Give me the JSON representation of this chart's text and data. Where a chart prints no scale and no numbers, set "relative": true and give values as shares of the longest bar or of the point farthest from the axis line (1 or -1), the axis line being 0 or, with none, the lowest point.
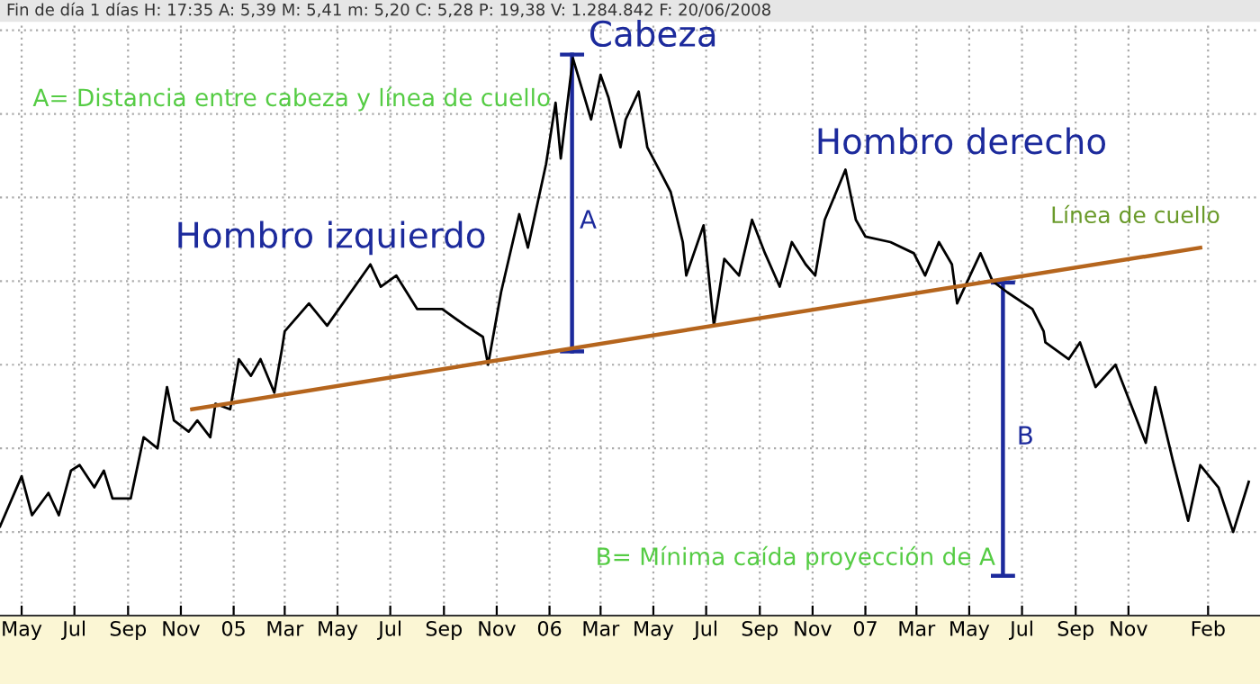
{
  "chart_data": {
    "type": "line",
    "relative": true,
    "title": "Fin de día 1 días H: 17:35 A: 5,39 M: 5,41 m: 5,20 C: 5,28 P: 19,38 V: 1.284.842 F: 20/06/2008",
    "xlim": [
      "2004-04-06",
      "2008-04-01"
    ],
    "xticks": [
      {
        "value": "2004-05-01",
        "label": "May"
      },
      {
        "value": "2004-07-01",
        "label": "Jul"
      },
      {
        "value": "2004-09-01",
        "label": "Sep"
      },
      {
        "value": "2004-11-01",
        "label": "Nov"
      },
      {
        "value": "2005-01-01",
        "label": "05"
      },
      {
        "value": "2005-03-01",
        "label": "Mar"
      },
      {
        "value": "2005-05-01",
        "label": "May"
      },
      {
        "value": "2005-07-01",
        "label": "Jul"
      },
      {
        "value": "2005-09-01",
        "label": "Sep"
      },
      {
        "value": "2005-11-01",
        "label": "Nov"
      },
      {
        "value": "2006-01-01",
        "label": "06"
      },
      {
        "value": "2006-03-01",
        "label": "Mar"
      },
      {
        "value": "2006-05-01",
        "label": "May"
      },
      {
        "value": "2006-07-01",
        "label": "Jul"
      },
      {
        "value": "2006-09-01",
        "label": "Sep"
      },
      {
        "value": "2006-11-01",
        "label": "Nov"
      },
      {
        "value": "2007-01-01",
        "label": "07"
      },
      {
        "value": "2007-03-01",
        "label": "Mar"
      },
      {
        "value": "2007-05-01",
        "label": "May"
      },
      {
        "value": "2007-07-01",
        "label": "Jul"
      },
      {
        "value": "2007-09-01",
        "label": "Sep"
      },
      {
        "value": "2007-11-01",
        "label": "Nov"
      },
      {
        "value": "2008-02-01",
        "label": "Feb"
      }
    ],
    "grid": true,
    "tick_labels": "x",
    "series": [
      {
        "color": "#000000",
        "x": [
          "2004-04-06",
          "2004-05-01",
          "2004-05-13",
          "2004-06-01",
          "2004-06-13",
          "2004-06-27",
          "2004-07-07",
          "2004-07-24",
          "2004-08-04",
          "2004-08-14",
          "2004-09-04",
          "2004-09-19",
          "2004-10-05",
          "2004-10-16",
          "2004-10-24",
          "2004-11-10",
          "2004-11-20",
          "2004-12-05",
          "2004-12-11",
          "2004-12-28",
          "2005-01-07",
          "2005-01-21",
          "2005-02-01",
          "2005-02-17",
          "2005-02-26",
          "2005-03-01",
          "2005-03-29",
          "2005-04-19",
          "2005-06-08",
          "2005-06-20",
          "2005-07-08",
          "2005-08-01",
          "2005-08-30",
          "2005-09-26",
          "2005-10-16",
          "2005-10-22",
          "2005-11-06",
          "2005-11-27",
          "2005-12-07",
          "2005-12-28",
          "2006-01-08",
          "2006-01-14",
          "2006-01-28",
          "2006-02-18",
          "2006-03-01",
          "2006-03-10",
          "2006-03-24",
          "2006-03-30",
          "2006-04-14",
          "2006-04-24",
          "2006-05-11",
          "2006-05-21",
          "2006-06-04",
          "2006-06-08",
          "2006-06-28",
          "2006-07-10",
          "2006-07-22",
          "2006-08-08",
          "2006-08-23",
          "2006-09-07",
          "2006-09-24",
          "2006-10-08",
          "2006-10-24",
          "2006-11-04",
          "2006-11-15",
          "2006-12-09",
          "2006-12-21",
          "2007-01-01",
          "2007-01-30",
          "2007-02-26",
          "2007-03-11",
          "2007-03-27",
          "2007-04-11",
          "2007-04-17",
          "2007-05-02",
          "2007-05-14",
          "2007-05-28",
          "2007-06-14",
          "2007-07-13",
          "2007-07-26",
          "2007-07-28",
          "2007-08-24",
          "2007-09-06",
          "2007-09-24",
          "2007-10-17",
          "2007-11-01",
          "2007-11-21",
          "2007-12-02",
          "2007-12-22",
          "2008-01-09",
          "2008-01-23",
          "2008-02-13",
          "2008-03-01",
          "2008-03-19"
        ],
        "values": [
          0.16,
          0.25,
          0.18,
          0.22,
          0.18,
          0.26,
          0.27,
          0.23,
          0.26,
          0.21,
          0.21,
          0.32,
          0.3,
          0.41,
          0.35,
          0.33,
          0.35,
          0.32,
          0.38,
          0.37,
          0.46,
          0.43,
          0.46,
          0.4,
          0.48,
          0.51,
          0.56,
          0.52,
          0.63,
          0.59,
          0.61,
          0.55,
          0.55,
          0.52,
          0.5,
          0.45,
          0.58,
          0.72,
          0.66,
          0.81,
          0.92,
          0.82,
          1.0,
          0.89,
          0.97,
          0.93,
          0.84,
          0.89,
          0.94,
          0.84,
          0.79,
          0.76,
          0.67,
          0.61,
          0.7,
          0.52,
          0.64,
          0.61,
          0.71,
          0.65,
          0.59,
          0.67,
          0.63,
          0.61,
          0.71,
          0.8,
          0.71,
          0.68,
          0.67,
          0.65,
          0.61,
          0.67,
          0.63,
          0.56,
          0.61,
          0.65,
          0.6,
          0.58,
          0.55,
          0.51,
          0.49,
          0.46,
          0.49,
          0.41,
          0.45,
          0.39,
          0.31,
          0.41,
          0.28,
          0.17,
          0.27,
          0.23,
          0.15,
          0.24
        ]
      },
      {
        "name": "Línea de cuello",
        "type": "line",
        "color": "#b5651d",
        "x": [
          "2004-11-14",
          "2008-01-23"
        ],
        "values": [
          0.37,
          0.66
        ]
      }
    ],
    "annotations": [
      "A= Distancia entre cabeza y línea de cuello",
      "B= Mínima caída proyección de A",
      "Hombro izquierdo",
      "Cabeza",
      "Hombro derecho",
      "A",
      "B"
    ]
  }
}
